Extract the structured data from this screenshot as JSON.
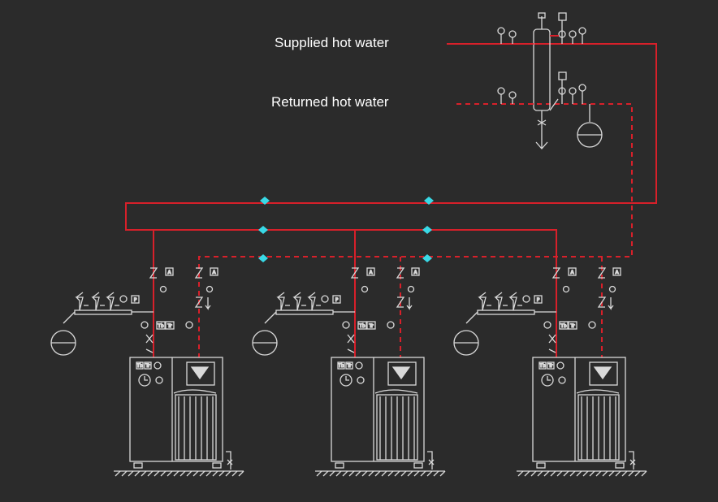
{
  "labels": {
    "supplied": "Supplied hot water",
    "returned": "Returned hot water"
  },
  "colors": {
    "background": "#2b2b2b",
    "supply_line": "#d8202a",
    "return_line": "#d8202a",
    "equipment": "#d9d9d9",
    "flow_arrow": "#39d9e6",
    "text": "#ffffff"
  },
  "boilers": [
    {
      "name": "boiler-1",
      "panel_labels": [
        "Tb",
        "Tr",
        "①"
      ]
    },
    {
      "name": "boiler-2",
      "panel_labels": [
        "Tb",
        "Tr",
        "①"
      ]
    },
    {
      "name": "boiler-3",
      "panel_labels": [
        "Tb",
        "Tr",
        "①"
      ]
    }
  ],
  "gauge_labels": {
    "pressure": "P",
    "thermometer": "Tb",
    "thermostat": "Tr",
    "alarm": "A"
  }
}
